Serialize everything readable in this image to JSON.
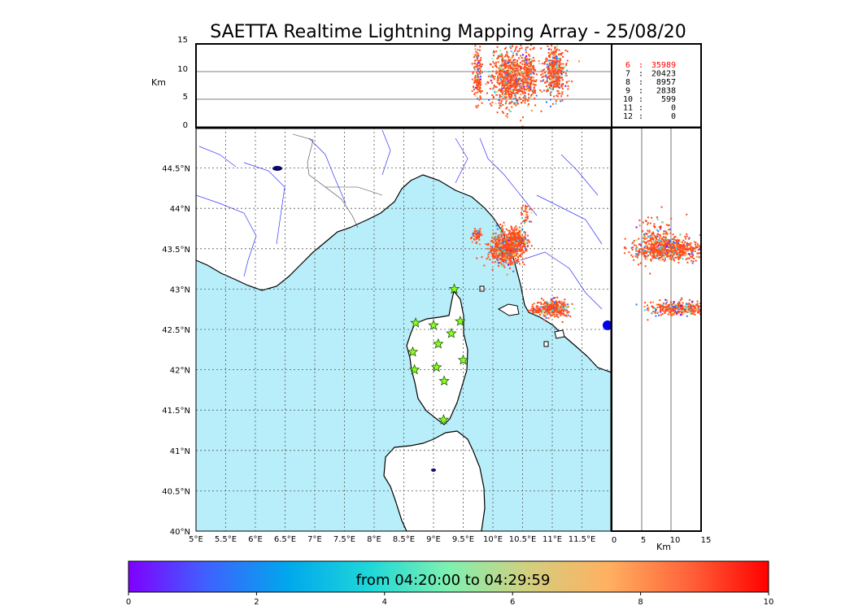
{
  "title": "SAETTA Realtime Lightning Mapping Array - 25/08/20",
  "map": {
    "lon_labels": [
      "5°E",
      "5.5°E",
      "6°E",
      "6.5°E",
      "7°E",
      "7.5°E",
      "8°E",
      "8.5°E",
      "9°E",
      "9.5°E",
      "10°E",
      "10.5°E",
      "11°E",
      "11.5°E"
    ],
    "lat_labels": [
      "40°N",
      "40.5°N",
      "41°N",
      "41.5°N",
      "42°N",
      "42.5°N",
      "43°N",
      "43.5°N",
      "44°N",
      "44.5°N"
    ],
    "lon_range": [
      5,
      12
    ],
    "lat_range": [
      40,
      45
    ],
    "sea_color": "#b8eefa",
    "land_color": "#ffffff",
    "river_color": "#3333ff",
    "grid": "dotted",
    "stations": [
      {
        "lon": 9.35,
        "lat": 43.0
      },
      {
        "lon": 8.7,
        "lat": 42.58
      },
      {
        "lon": 9.0,
        "lat": 42.55
      },
      {
        "lon": 9.45,
        "lat": 42.6
      },
      {
        "lon": 9.08,
        "lat": 42.32
      },
      {
        "lon": 9.3,
        "lat": 42.45
      },
      {
        "lon": 8.65,
        "lat": 42.22
      },
      {
        "lon": 9.5,
        "lat": 42.12
      },
      {
        "lon": 8.68,
        "lat": 42.0
      },
      {
        "lon": 9.05,
        "lat": 42.03
      },
      {
        "lon": 9.18,
        "lat": 41.86
      },
      {
        "lon": 9.17,
        "lat": 41.38
      }
    ]
  },
  "altitude_panel": {
    "ylabel": "Km",
    "yticks": [
      "0",
      "5",
      "10",
      "15"
    ]
  },
  "side_panel": {
    "xlabel": "Km",
    "xticks": [
      "0",
      "5",
      "10",
      "15"
    ]
  },
  "counts": [
    {
      "level": "6",
      "value": "35989",
      "color": "#ff0000"
    },
    {
      "level": "7",
      "value": "20423",
      "color": "#000000"
    },
    {
      "level": "8",
      "value": "8957",
      "color": "#000000"
    },
    {
      "level": "9",
      "value": "2838",
      "color": "#000000"
    },
    {
      "level": "10",
      "value": "599",
      "color": "#000000"
    },
    {
      "level": "11",
      "value": "0",
      "color": "#000000"
    },
    {
      "level": "12",
      "value": "0",
      "color": "#000000"
    }
  ],
  "colorbar": {
    "label": "from 04:20:00 to 04:29:59",
    "ticks": [
      "0",
      "2",
      "4",
      "6",
      "8",
      "10"
    ],
    "stops": [
      "#7f00ff",
      "#3f5fff",
      "#00b0e8",
      "#20e0d0",
      "#80f0b0",
      "#d0d080",
      "#ffb060",
      "#ff7040",
      "#ff2010",
      "#ff0000"
    ]
  }
}
